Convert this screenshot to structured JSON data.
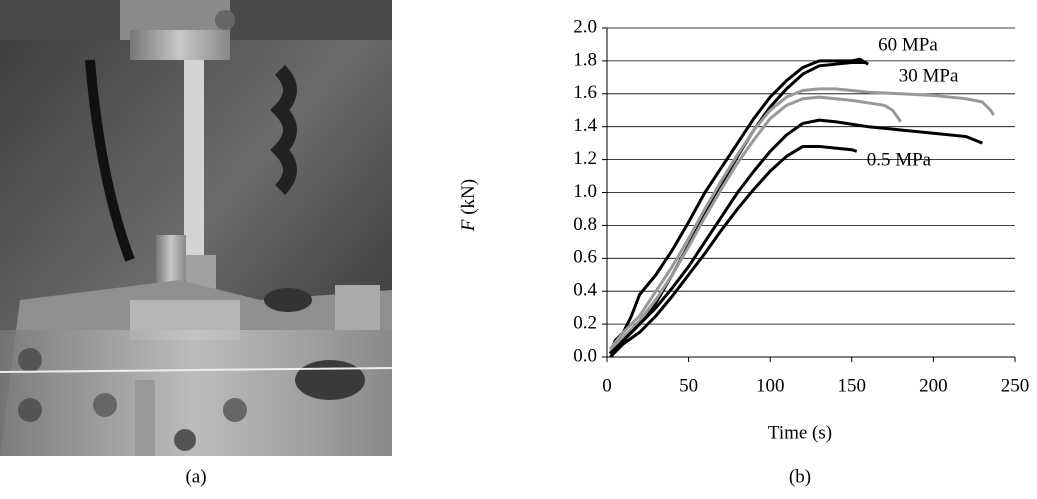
{
  "panel_labels": [
    "(a)",
    "(b)"
  ],
  "chart_data": {
    "type": "line",
    "x_label": "Time (s)",
    "y_label": {
      "symbol": "F",
      "unit": "(kN)"
    },
    "xlim": [
      0,
      250
    ],
    "xticks": [
      0,
      50,
      100,
      150,
      200,
      250
    ],
    "ylim": [
      0,
      2
    ],
    "yticks": [
      {
        "value": 0,
        "label": "0.0"
      },
      {
        "value": 0.2,
        "label": "0.2"
      },
      {
        "value": 0.4,
        "label": "0.4"
      },
      {
        "value": 0.6,
        "label": "0.6"
      },
      {
        "value": 0.8,
        "label": "0.8"
      },
      {
        "value": 1,
        "label": "1.0"
      },
      {
        "value": 1.2,
        "label": "1.2"
      },
      {
        "value": 1.4,
        "label": "1.4"
      },
      {
        "value": 1.6,
        "label": "1.6"
      },
      {
        "value": 1.8,
        "label": "1.8"
      },
      {
        "value": 2,
        "label": "2.0"
      }
    ],
    "grid": true,
    "series": [
      {
        "name": "60 MPa",
        "color": "#000000",
        "runs": [
          {
            "x": [
              2,
              5,
              10,
              15,
              20,
              30,
              40,
              50,
              60,
              70,
              80,
              90,
              100,
              110,
              120,
              130,
              140,
              150,
              155,
              160
            ],
            "values": [
              0.02,
              0.1,
              0.15,
              0.25,
              0.38,
              0.5,
              0.65,
              0.82,
              1.0,
              1.15,
              1.3,
              1.45,
              1.58,
              1.68,
              1.76,
              1.8,
              1.8,
              1.8,
              1.81,
              1.78
            ]
          },
          {
            "x": [
              2,
              10,
              20,
              30,
              40,
              50,
              60,
              70,
              80,
              90,
              100,
              110,
              120,
              130,
              140,
              150,
              158
            ],
            "values": [
              0.02,
              0.1,
              0.2,
              0.33,
              0.5,
              0.68,
              0.87,
              1.05,
              1.22,
              1.38,
              1.52,
              1.63,
              1.72,
              1.77,
              1.78,
              1.79,
              1.79
            ]
          }
        ]
      },
      {
        "name": "30 MPa",
        "color": "#999999",
        "runs": [
          {
            "x": [
              2,
              10,
              20,
              30,
              40,
              50,
              60,
              70,
              80,
              90,
              100,
              110,
              120,
              130,
              140,
              160,
              180,
              200,
              220,
              230,
              235,
              237
            ],
            "values": [
              0.05,
              0.15,
              0.25,
              0.4,
              0.55,
              0.72,
              0.9,
              1.07,
              1.23,
              1.38,
              1.5,
              1.58,
              1.62,
              1.63,
              1.63,
              1.61,
              1.6,
              1.59,
              1.57,
              1.55,
              1.5,
              1.47
            ]
          },
          {
            "x": [
              2,
              10,
              20,
              30,
              40,
              50,
              60,
              70,
              80,
              90,
              100,
              110,
              120,
              130,
              150,
              170,
              175,
              180
            ],
            "values": [
              0.03,
              0.12,
              0.22,
              0.35,
              0.5,
              0.67,
              0.85,
              1.02,
              1.18,
              1.32,
              1.45,
              1.53,
              1.57,
              1.58,
              1.56,
              1.53,
              1.5,
              1.43
            ]
          }
        ]
      },
      {
        "name": "0.5 MPa",
        "color": "#000000",
        "runs": [
          {
            "x": [
              2,
              10,
              20,
              30,
              40,
              50,
              60,
              70,
              80,
              90,
              100,
              110,
              120,
              130,
              140,
              150,
              153
            ],
            "values": [
              0.0,
              0.08,
              0.15,
              0.25,
              0.37,
              0.5,
              0.63,
              0.77,
              0.9,
              1.02,
              1.13,
              1.22,
              1.28,
              1.28,
              1.27,
              1.26,
              1.25
            ]
          },
          {
            "x": [
              2,
              10,
              20,
              30,
              40,
              50,
              60,
              70,
              80,
              90,
              100,
              110,
              120,
              130,
              140,
              160,
              180,
              200,
              220,
              230
            ],
            "values": [
              0.02,
              0.1,
              0.2,
              0.3,
              0.42,
              0.55,
              0.7,
              0.85,
              1.0,
              1.13,
              1.25,
              1.35,
              1.42,
              1.44,
              1.43,
              1.4,
              1.38,
              1.36,
              1.34,
              1.3
            ]
          }
        ]
      }
    ]
  }
}
